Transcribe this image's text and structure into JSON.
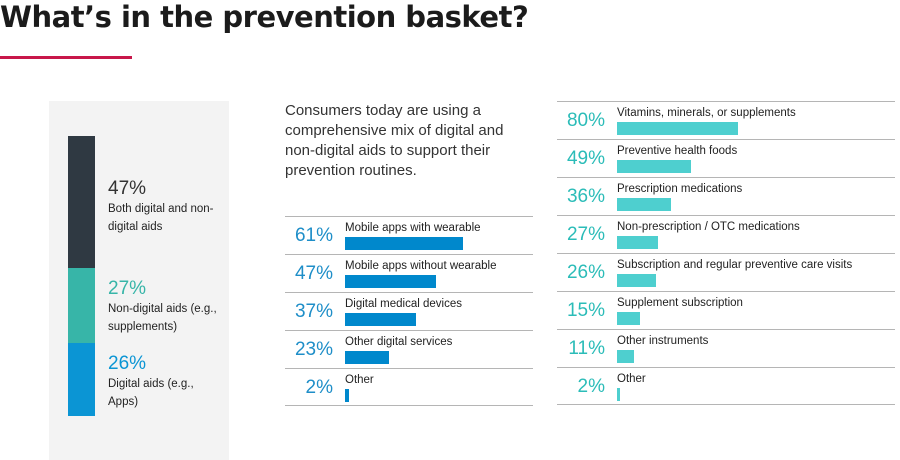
{
  "title": "What’s in the prevention basket?",
  "intro": "Consumers today are using a comprehensive mix of digital and non-digital aids to support their prevention routines.",
  "colors": {
    "accent_rule": "#c8174a",
    "dark": "#2f3942",
    "teal": "#37b5a8",
    "blue": "#0b95d4",
    "bar_blue": "#0088cc",
    "bar_teal": "#4ecfcf",
    "pct_blue": "#1e8ec8",
    "pct_teal": "#2bbcb8"
  },
  "chart_data": [
    {
      "type": "bar",
      "orientation": "stacked-vertical",
      "unit": "%",
      "segments": [
        {
          "value": 47,
          "pct": "47%",
          "label": "Both digital and non-digital aids",
          "color": "#2f3942"
        },
        {
          "value": 27,
          "pct": "27%",
          "label": "Non-digital aids (e.g., supplements)",
          "color": "#37b5a8"
        },
        {
          "value": 26,
          "pct": "26%",
          "label": "Digital aids (e.g., Apps)",
          "color": "#0b95d4"
        }
      ]
    },
    {
      "type": "bar",
      "orientation": "horizontal",
      "unit": "%",
      "xlim": [
        0,
        100
      ],
      "categories": [
        "Mobile apps with wearable",
        "Mobile apps without wearable",
        "Digital medical devices",
        "Other digital services",
        "Other"
      ],
      "values": [
        61,
        47,
        37,
        23,
        2
      ],
      "value_labels": [
        "61%",
        "47%",
        "37%",
        "23%",
        "2%"
      ]
    },
    {
      "type": "bar",
      "orientation": "horizontal",
      "unit": "%",
      "xlim": [
        0,
        100
      ],
      "categories": [
        "Vitamins, minerals, or supplements",
        "Preventive health foods",
        "Prescription medications",
        "Non-prescription / OTC medications",
        "Subscription and regular preventive care visits",
        "Supplement subscription",
        "Other instruments",
        "Other"
      ],
      "values": [
        80,
        49,
        36,
        27,
        26,
        15,
        11,
        2
      ],
      "value_labels": [
        "80%",
        "49%",
        "36%",
        "27%",
        "26%",
        "15%",
        "11%",
        "2%"
      ]
    }
  ]
}
